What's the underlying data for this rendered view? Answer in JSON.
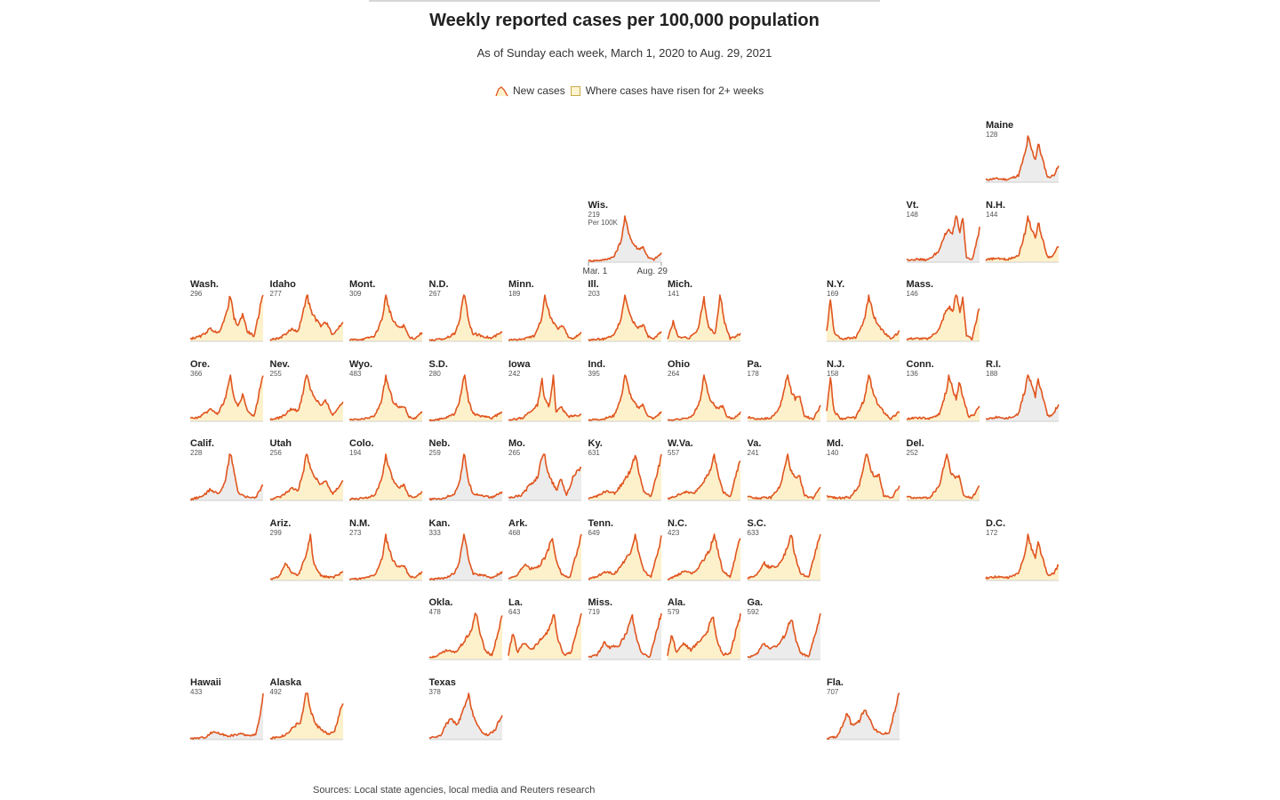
{
  "title": "Weekly reported cases per 100,000 population",
  "subtitle": "As of Sunday each week, March 1, 2020 to Aug. 29, 2021",
  "legend": {
    "new_cases": "New cases",
    "risen": "Where cases have risen for 2+ weeks"
  },
  "source": "Sources: Local state agencies, local media and Reuters research",
  "colors": {
    "line": "#e0551f",
    "fill_rising": "#fdf1cc",
    "fill_flat": "#ececec",
    "axis": "#9a9a9a"
  },
  "chart_data": {
    "type": "area",
    "title": "Weekly reported cases per 100,000 population",
    "subtitle": "As of Sunday each week, March 1, 2020 to Aug. 29, 2021",
    "x_start_label": "Mar. 1",
    "x_end_label": "Aug. 29",
    "unit_label": "Per 100K",
    "legend": [
      "New cases",
      "Where cases have risen for 2+ weeks"
    ],
    "legend_position": "top-center",
    "grid": false,
    "states": [
      {
        "name": "Maine",
        "value": 128,
        "col": 10,
        "row": 0,
        "rising": false,
        "profile": "ne_winter"
      },
      {
        "name": "Wis.",
        "value": 219,
        "col": 5,
        "row": 1,
        "rising": false,
        "profile": "midwest_fall",
        "show_axis": true,
        "show_unit": true
      },
      {
        "name": "Vt.",
        "value": 148,
        "col": 9,
        "row": 1,
        "rising": false,
        "profile": "ne_spring"
      },
      {
        "name": "N.H.",
        "value": 144,
        "col": 10,
        "row": 1,
        "rising": true,
        "profile": "ne_winter"
      },
      {
        "name": "Wash.",
        "value": 296,
        "col": 0,
        "row": 2,
        "rising": true,
        "profile": "west_rising"
      },
      {
        "name": "Idaho",
        "value": 277,
        "col": 1,
        "row": 2,
        "rising": true,
        "profile": "mountain_fall"
      },
      {
        "name": "Mont.",
        "value": 309,
        "col": 2,
        "row": 2,
        "rising": true,
        "profile": "midwest_fall"
      },
      {
        "name": "N.D.",
        "value": 267,
        "col": 3,
        "row": 2,
        "rising": true,
        "profile": "dakota"
      },
      {
        "name": "Minn.",
        "value": 189,
        "col": 4,
        "row": 2,
        "rising": true,
        "profile": "midwest_fall"
      },
      {
        "name": "Ill.",
        "value": 203,
        "col": 5,
        "row": 2,
        "rising": true,
        "profile": "midwest_fall"
      },
      {
        "name": "Mich.",
        "value": 141,
        "col": 6,
        "row": 2,
        "rising": true,
        "profile": "michigan"
      },
      {
        "name": "N.Y.",
        "value": 169,
        "col": 8,
        "row": 2,
        "rising": true,
        "profile": "ny"
      },
      {
        "name": "Mass.",
        "value": 146,
        "col": 9,
        "row": 2,
        "rising": true,
        "profile": "ne_spring"
      },
      {
        "name": "Ore.",
        "value": 366,
        "col": 0,
        "row": 3,
        "rising": true,
        "profile": "west_rising"
      },
      {
        "name": "Nev.",
        "value": 255,
        "col": 1,
        "row": 3,
        "rising": true,
        "profile": "mountain_fall"
      },
      {
        "name": "Wyo.",
        "value": 483,
        "col": 2,
        "row": 3,
        "rising": true,
        "profile": "midwest_fall"
      },
      {
        "name": "S.D.",
        "value": 280,
        "col": 3,
        "row": 3,
        "rising": true,
        "profile": "dakota"
      },
      {
        "name": "Iowa",
        "value": 242,
        "col": 4,
        "row": 3,
        "rising": true,
        "profile": "iowa"
      },
      {
        "name": "Ind.",
        "value": 395,
        "col": 5,
        "row": 3,
        "rising": true,
        "profile": "midwest_fall"
      },
      {
        "name": "Ohio",
        "value": 264,
        "col": 6,
        "row": 3,
        "rising": true,
        "profile": "midwest_fall"
      },
      {
        "name": "Pa.",
        "value": 178,
        "col": 7,
        "row": 3,
        "rising": true,
        "profile": "east_winter"
      },
      {
        "name": "N.J.",
        "value": 158,
        "col": 8,
        "row": 3,
        "rising": true,
        "profile": "ny"
      },
      {
        "name": "Conn.",
        "value": 136,
        "col": 9,
        "row": 3,
        "rising": true,
        "profile": "ne_winter"
      },
      {
        "name": "R.I.",
        "value": 188,
        "col": 10,
        "row": 3,
        "rising": false,
        "profile": "ne_winter"
      },
      {
        "name": "Calif.",
        "value": 228,
        "col": 0,
        "row": 4,
        "rising": false,
        "profile": "california"
      },
      {
        "name": "Utah",
        "value": 256,
        "col": 1,
        "row": 4,
        "rising": true,
        "profile": "mountain_fall"
      },
      {
        "name": "Colo.",
        "value": 194,
        "col": 2,
        "row": 4,
        "rising": true,
        "profile": "midwest_fall"
      },
      {
        "name": "Neb.",
        "value": 259,
        "col": 3,
        "row": 4,
        "rising": false,
        "profile": "dakota"
      },
      {
        "name": "Mo.",
        "value": 265,
        "col": 4,
        "row": 4,
        "rising": false,
        "profile": "missouri"
      },
      {
        "name": "Ky.",
        "value": 631,
        "col": 5,
        "row": 4,
        "rising": true,
        "profile": "south_rising"
      },
      {
        "name": "W.Va.",
        "value": 557,
        "col": 6,
        "row": 4,
        "rising": true,
        "profile": "south_rising"
      },
      {
        "name": "Va.",
        "value": 241,
        "col": 7,
        "row": 4,
        "rising": true,
        "profile": "east_winter"
      },
      {
        "name": "Md.",
        "value": 140,
        "col": 8,
        "row": 4,
        "rising": true,
        "profile": "east_winter"
      },
      {
        "name": "Del.",
        "value": 252,
        "col": 9,
        "row": 4,
        "rising": true,
        "profile": "east_winter"
      },
      {
        "name": "Ariz.",
        "value": 299,
        "col": 1,
        "row": 5,
        "rising": true,
        "profile": "arizona"
      },
      {
        "name": "N.M.",
        "value": 273,
        "col": 2,
        "row": 5,
        "rising": true,
        "profile": "midwest_fall"
      },
      {
        "name": "Kan.",
        "value": 333,
        "col": 3,
        "row": 5,
        "rising": false,
        "profile": "dakota"
      },
      {
        "name": "Ark.",
        "value": 468,
        "col": 4,
        "row": 5,
        "rising": true,
        "profile": "south_surge"
      },
      {
        "name": "Tenn.",
        "value": 649,
        "col": 5,
        "row": 5,
        "rising": true,
        "profile": "south_rising"
      },
      {
        "name": "N.C.",
        "value": 423,
        "col": 6,
        "row": 5,
        "rising": true,
        "profile": "south_rising"
      },
      {
        "name": "S.C.",
        "value": 633,
        "col": 7,
        "row": 5,
        "rising": true,
        "profile": "south_surge"
      },
      {
        "name": "D.C.",
        "value": 172,
        "col": 10,
        "row": 5,
        "rising": true,
        "profile": "ne_winter"
      },
      {
        "name": "Okla.",
        "value": 478,
        "col": 3,
        "row": 6,
        "rising": true,
        "profile": "south_rising"
      },
      {
        "name": "La.",
        "value": 643,
        "col": 4,
        "row": 6,
        "rising": true,
        "profile": "louisiana"
      },
      {
        "name": "Miss.",
        "value": 719,
        "col": 5,
        "row": 6,
        "rising": false,
        "profile": "south_surge"
      },
      {
        "name": "Ala.",
        "value": 579,
        "col": 6,
        "row": 6,
        "rising": true,
        "profile": "louisiana"
      },
      {
        "name": "Ga.",
        "value": 592,
        "col": 7,
        "row": 6,
        "rising": false,
        "profile": "south_surge"
      },
      {
        "name": "Hawaii",
        "value": 433,
        "col": 0,
        "row": 7,
        "rising": false,
        "profile": "hawaii"
      },
      {
        "name": "Alaska",
        "value": 492,
        "col": 1,
        "row": 7,
        "rising": true,
        "profile": "alaska"
      },
      {
        "name": "Texas",
        "value": 378,
        "col": 3,
        "row": 7,
        "rising": false,
        "profile": "texas"
      },
      {
        "name": "Fla.",
        "value": 707,
        "col": 8,
        "row": 7,
        "rising": false,
        "profile": "florida"
      }
    ]
  }
}
